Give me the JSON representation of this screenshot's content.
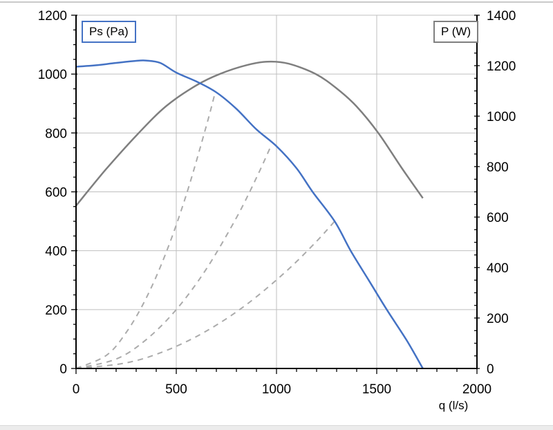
{
  "page": {
    "background": "#ffffff",
    "top_border_color": "#c9c9c9",
    "bottom_border_color": "#ececec"
  },
  "legend": {
    "ps_label": "Ps (Pa)",
    "ps_border_color": "#4472c4",
    "p_label": "P (W)",
    "p_border_color": "#7f7f7f"
  },
  "chart_data": {
    "type": "line",
    "title": "",
    "grid": true,
    "colors": {
      "gridline": "#bfbfbf",
      "axis": "#000000",
      "tick": "#000000",
      "label": "#000000"
    },
    "x_axis": {
      "label": "q (l/s)",
      "min": 0,
      "max": 2000,
      "major_step": 500,
      "minor_step": 100,
      "tick_labels": [
        "0",
        "500",
        "1000",
        "1500",
        "2000"
      ]
    },
    "y_axis_left": {
      "label": "Ps (Pa)",
      "min": 0,
      "max": 1200,
      "major_step": 200,
      "minor_step": 50,
      "tick_labels": [
        "0",
        "200",
        "400",
        "600",
        "800",
        "1000",
        "1200"
      ]
    },
    "y_axis_right": {
      "label": "P (W)",
      "min": 0,
      "max": 1400,
      "major_step": 200,
      "minor_step": 50,
      "tick_labels": [
        "0",
        "200",
        "400",
        "600",
        "800",
        "1000",
        "1200",
        "1400"
      ]
    },
    "series": [
      {
        "name": "system-curve-steep",
        "axis": "left",
        "color": "#ababab",
        "style": "dashed",
        "width": 2,
        "points": [
          [
            0,
            0
          ],
          [
            150,
            44
          ],
          [
            250,
            122
          ],
          [
            350,
            239
          ],
          [
            450,
            395
          ],
          [
            550,
            590
          ],
          [
            650,
            824
          ],
          [
            695,
            940
          ]
        ]
      },
      {
        "name": "system-curve-middle",
        "axis": "left",
        "color": "#ababab",
        "style": "dashed",
        "width": 2,
        "points": [
          [
            0,
            0
          ],
          [
            200,
            32
          ],
          [
            350,
            98
          ],
          [
            500,
            200
          ],
          [
            650,
            338
          ],
          [
            800,
            512
          ],
          [
            900,
            648
          ],
          [
            975,
            760
          ]
        ]
      },
      {
        "name": "system-curve-shallow",
        "axis": "left",
        "color": "#ababab",
        "style": "dashed",
        "width": 2,
        "points": [
          [
            0,
            0
          ],
          [
            250,
            19
          ],
          [
            450,
            61
          ],
          [
            650,
            127
          ],
          [
            850,
            217
          ],
          [
            1050,
            331
          ],
          [
            1200,
            432
          ],
          [
            1290,
            500
          ]
        ]
      },
      {
        "name": "P (W)",
        "axis": "right",
        "color": "#7f7f7f",
        "style": "solid",
        "width": 2.5,
        "points": [
          [
            0,
            645
          ],
          [
            150,
            790
          ],
          [
            310,
            931
          ],
          [
            450,
            1040
          ],
          [
            600,
            1122
          ],
          [
            720,
            1168
          ],
          [
            850,
            1202
          ],
          [
            955,
            1216
          ],
          [
            1060,
            1208
          ],
          [
            1195,
            1167
          ],
          [
            1300,
            1110
          ],
          [
            1400,
            1038
          ],
          [
            1510,
            931
          ],
          [
            1620,
            800
          ],
          [
            1730,
            675
          ]
        ]
      },
      {
        "name": "Ps (Pa)",
        "axis": "left",
        "color": "#4472c4",
        "style": "solid",
        "width": 2.5,
        "points": [
          [
            0,
            1025
          ],
          [
            100,
            1030
          ],
          [
            200,
            1038
          ],
          [
            300,
            1045
          ],
          [
            350,
            1046
          ],
          [
            420,
            1038
          ],
          [
            500,
            1005
          ],
          [
            600,
            975
          ],
          [
            700,
            938
          ],
          [
            800,
            882
          ],
          [
            900,
            812
          ],
          [
            1000,
            755
          ],
          [
            1100,
            680
          ],
          [
            1180,
            600
          ],
          [
            1290,
            500
          ],
          [
            1370,
            400
          ],
          [
            1460,
            300
          ],
          [
            1550,
            200
          ],
          [
            1650,
            95
          ],
          [
            1730,
            0
          ]
        ]
      }
    ]
  }
}
